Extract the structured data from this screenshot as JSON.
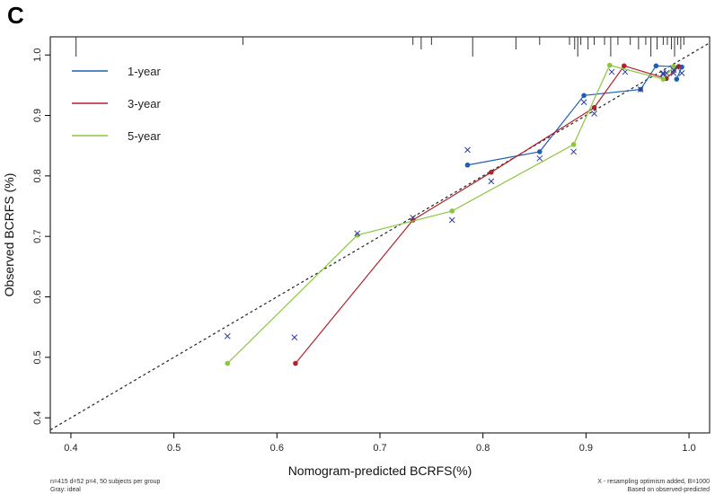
{
  "panel_letter": "C",
  "footnotes": {
    "left_line1": "n=415 d=52 p=4, 50 subjects per group",
    "left_line2": "Gray: ideal",
    "right_line1": "X - resampling optimism added, B=1000",
    "right_line2": "Based on observed-predicted"
  },
  "colors": {
    "one_year": "#1f5fb0",
    "three_year": "#b0232a",
    "five_year": "#8cc63f",
    "cross": "#2e3d9c"
  },
  "chart_data": {
    "type": "line",
    "title": "",
    "xlabel": "Nomogram-predicted BCRFS(%)",
    "ylabel": "Observed BCRFS (%)",
    "xlim": [
      0.38,
      1.02
    ],
    "ylim": [
      0.375,
      1.03
    ],
    "xticks": [
      "0.4",
      "0.5",
      "0.6",
      "0.7",
      "0.8",
      "0.9",
      "1.0"
    ],
    "yticks": [
      "0.4",
      "0.5",
      "0.6",
      "0.7",
      "0.8",
      "0.9",
      "1.0"
    ],
    "ideal_line": [
      [
        0.38,
        0.38
      ],
      [
        1.02,
        1.02
      ]
    ],
    "legend_position": "top-left",
    "series": [
      {
        "name": "1-year",
        "apparent": [
          [
            0.785,
            0.818
          ],
          [
            0.855,
            0.84
          ],
          [
            0.898,
            0.933
          ],
          [
            0.953,
            0.943
          ],
          [
            0.968,
            0.982
          ],
          [
            0.993,
            0.98
          ],
          [
            0.988,
            0.96
          ]
        ],
        "corrected": [
          [
            0.785,
            0.843
          ],
          [
            0.855,
            0.829
          ],
          [
            0.898,
            0.922
          ],
          [
            0.953,
            0.943
          ],
          [
            0.975,
            0.97
          ],
          [
            0.993,
            0.97
          ],
          [
            0.985,
            0.97
          ]
        ]
      },
      {
        "name": "3-year",
        "apparent": [
          [
            0.618,
            0.49
          ],
          [
            0.732,
            0.727
          ],
          [
            0.808,
            0.806
          ],
          [
            0.908,
            0.913
          ],
          [
            0.937,
            0.982
          ],
          [
            0.978,
            0.961
          ],
          [
            0.99,
            0.981
          ]
        ],
        "corrected": [
          [
            0.617,
            0.533
          ],
          [
            0.732,
            0.731
          ],
          [
            0.808,
            0.791
          ],
          [
            0.908,
            0.903
          ],
          [
            0.938,
            0.972
          ],
          [
            0.978,
            0.97
          ],
          [
            0.988,
            0.98
          ]
        ]
      },
      {
        "name": "5-year",
        "apparent": [
          [
            0.552,
            0.49
          ],
          [
            0.678,
            0.702
          ],
          [
            0.77,
            0.742
          ],
          [
            0.888,
            0.852
          ],
          [
            0.923,
            0.983
          ],
          [
            0.975,
            0.96
          ],
          [
            0.985,
            0.981
          ]
        ],
        "corrected": [
          [
            0.552,
            0.535
          ],
          [
            0.678,
            0.705
          ],
          [
            0.77,
            0.727
          ],
          [
            0.888,
            0.84
          ],
          [
            0.925,
            0.972
          ],
          [
            0.975,
            0.968
          ],
          [
            0.985,
            0.975
          ]
        ]
      }
    ],
    "rug_x": [
      0.405,
      0.567,
      0.732,
      0.74,
      0.75,
      0.79,
      0.832,
      0.855,
      0.884,
      0.889,
      0.892,
      0.895,
      0.902,
      0.908,
      0.918,
      0.924,
      0.931,
      0.943,
      0.951,
      0.958,
      0.963,
      0.969,
      0.975,
      0.979,
      0.983,
      0.986,
      0.989,
      0.992,
      0.995
    ]
  }
}
